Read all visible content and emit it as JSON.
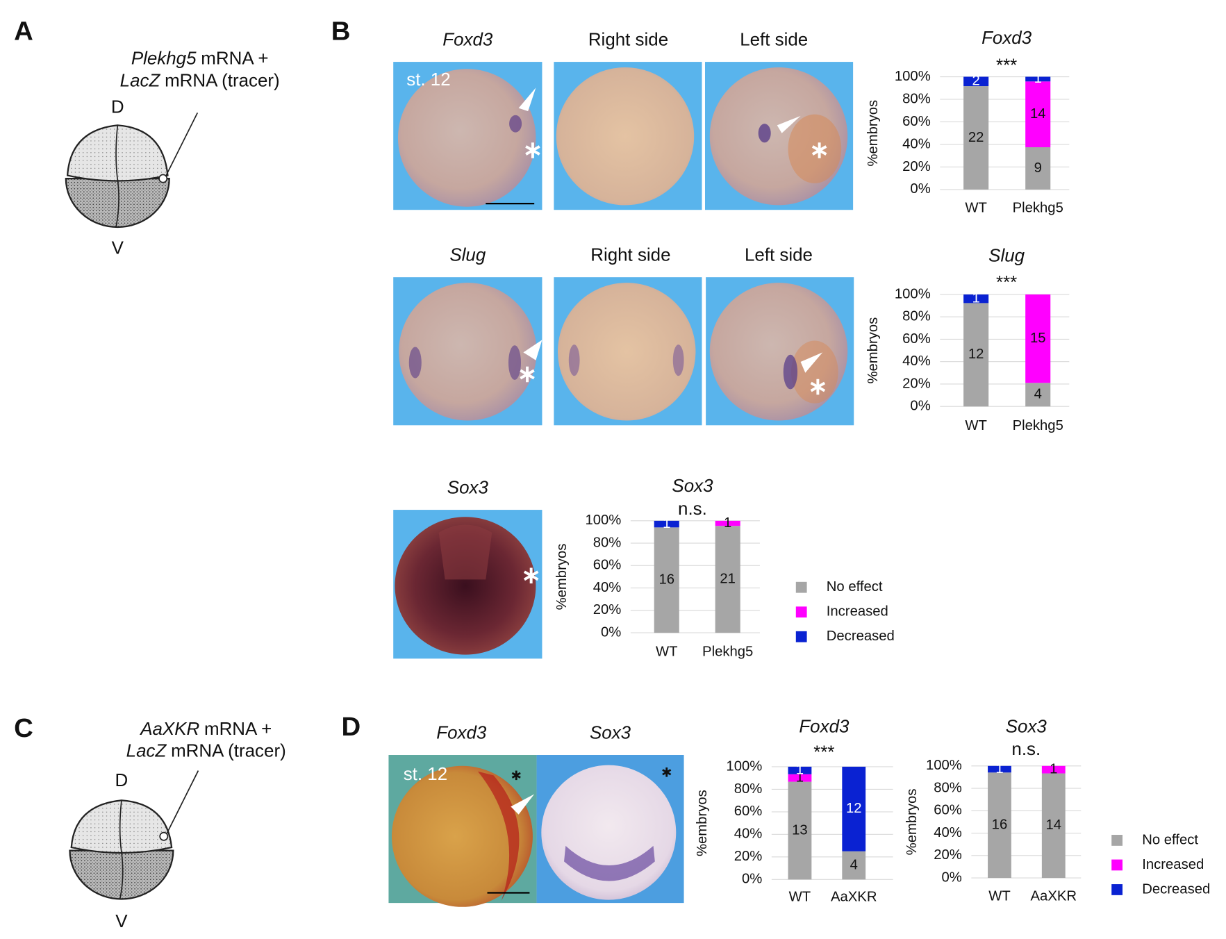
{
  "panels": {
    "a": {
      "label": "A",
      "gene": "Plekhg5",
      "gene_rest": "mRNA +",
      "tracer": "LacZ",
      "tracer_rest": "mRNA (tracer)",
      "dorsal": "D",
      "ventral": "V"
    },
    "b": {
      "label": "B",
      "images": [
        {
          "title": "Foxd3",
          "stage": "st. 12"
        },
        {
          "title": "Right side"
        },
        {
          "title": "Left side"
        },
        {
          "title": "Slug"
        },
        {
          "title": "Right side"
        },
        {
          "title": "Left side"
        },
        {
          "title": "Sox3"
        }
      ]
    },
    "c": {
      "label": "C",
      "gene": "AaXKR",
      "gene_rest": "mRNA +",
      "tracer": "LacZ",
      "tracer_rest": "mRNA (tracer)",
      "dorsal": "D",
      "ventral": "V"
    },
    "d": {
      "label": "D",
      "images": [
        {
          "title": "Foxd3",
          "stage": "st. 12"
        },
        {
          "title": "Sox3"
        }
      ]
    }
  },
  "chart_data": [
    {
      "type": "bar",
      "stacked": true,
      "title": "Foxd3",
      "annotation": "***",
      "y_label": "%embryos",
      "categories": [
        "WT",
        "Plekhg5"
      ],
      "series": [
        {
          "name": "No effect",
          "color": "#a6a6a6",
          "values": [
            22,
            9
          ]
        },
        {
          "name": "Increased",
          "color": "#ff00ff",
          "values": [
            0,
            14
          ]
        },
        {
          "name": "Decreased",
          "color": "#0a22d2",
          "values": [
            2,
            1
          ]
        }
      ],
      "ylim": [
        0,
        100
      ],
      "yticks": [
        {
          "value": 0,
          "label": "0%"
        },
        {
          "value": 20,
          "label": "20%"
        },
        {
          "value": 40,
          "label": "40%"
        },
        {
          "value": 60,
          "label": "60%"
        },
        {
          "value": 80,
          "label": "80%"
        },
        {
          "value": 100,
          "label": "100%"
        }
      ],
      "grid": true
    },
    {
      "type": "bar",
      "stacked": true,
      "title": "Slug",
      "annotation": "***",
      "y_label": "%embryos",
      "categories": [
        "WT",
        "Plekhg5"
      ],
      "series": [
        {
          "name": "No effect",
          "color": "#a6a6a6",
          "values": [
            12,
            4
          ]
        },
        {
          "name": "Increased",
          "color": "#ff00ff",
          "values": [
            0,
            15
          ]
        },
        {
          "name": "Decreased",
          "color": "#0a22d2",
          "values": [
            1,
            0
          ]
        }
      ],
      "ylim": [
        0,
        100
      ],
      "yticks": [
        {
          "value": 0,
          "label": "0%"
        },
        {
          "value": 20,
          "label": "20%"
        },
        {
          "value": 40,
          "label": "40%"
        },
        {
          "value": 60,
          "label": "60%"
        },
        {
          "value": 80,
          "label": "80%"
        },
        {
          "value": 100,
          "label": "100%"
        }
      ],
      "grid": true
    },
    {
      "type": "bar",
      "stacked": true,
      "title": "Sox3",
      "annotation": "n.s.",
      "y_label": "%embryos",
      "categories": [
        "WT",
        "Plekhg5"
      ],
      "series": [
        {
          "name": "No effect",
          "color": "#a6a6a6",
          "values": [
            16,
            21
          ]
        },
        {
          "name": "Increased",
          "color": "#ff00ff",
          "values": [
            0,
            1
          ]
        },
        {
          "name": "Decreased",
          "color": "#0a22d2",
          "values": [
            1,
            0
          ]
        }
      ],
      "ylim": [
        0,
        100
      ],
      "yticks": [
        {
          "value": 0,
          "label": "0%"
        },
        {
          "value": 20,
          "label": "20%"
        },
        {
          "value": 40,
          "label": "40%"
        },
        {
          "value": 60,
          "label": "60%"
        },
        {
          "value": 80,
          "label": "80%"
        },
        {
          "value": 100,
          "label": "100%"
        }
      ],
      "grid": true,
      "legend": "right"
    },
    {
      "type": "bar",
      "stacked": true,
      "title": "Foxd3",
      "annotation": "***",
      "y_label": "%embryos",
      "categories": [
        "WT",
        "AaXKR"
      ],
      "series": [
        {
          "name": "No effect",
          "color": "#a6a6a6",
          "values": [
            13,
            4
          ]
        },
        {
          "name": "Increased",
          "color": "#ff00ff",
          "values": [
            1,
            0
          ]
        },
        {
          "name": "Decreased",
          "color": "#0a22d2",
          "values": [
            1,
            12
          ]
        }
      ],
      "ylim": [
        0,
        100
      ],
      "yticks": [
        {
          "value": 0,
          "label": "0%"
        },
        {
          "value": 20,
          "label": "20%"
        },
        {
          "value": 40,
          "label": "40%"
        },
        {
          "value": 60,
          "label": "60%"
        },
        {
          "value": 80,
          "label": "80%"
        },
        {
          "value": 100,
          "label": "100%"
        }
      ],
      "grid": true
    },
    {
      "type": "bar",
      "stacked": true,
      "title": "Sox3",
      "annotation": "n.s.",
      "y_label": "%embryos",
      "categories": [
        "WT",
        "AaXKR"
      ],
      "series": [
        {
          "name": "No effect",
          "color": "#a6a6a6",
          "values": [
            16,
            14
          ]
        },
        {
          "name": "Increased",
          "color": "#ff00ff",
          "values": [
            0,
            1
          ]
        },
        {
          "name": "Decreased",
          "color": "#0a22d2",
          "values": [
            1,
            0
          ]
        }
      ],
      "ylim": [
        0,
        100
      ],
      "yticks": [
        {
          "value": 0,
          "label": "0%"
        },
        {
          "value": 20,
          "label": "20%"
        },
        {
          "value": 40,
          "label": "40%"
        },
        {
          "value": 60,
          "label": "60%"
        },
        {
          "value": 80,
          "label": "80%"
        },
        {
          "value": 100,
          "label": "100%"
        }
      ],
      "grid": true,
      "legend": "right"
    }
  ]
}
